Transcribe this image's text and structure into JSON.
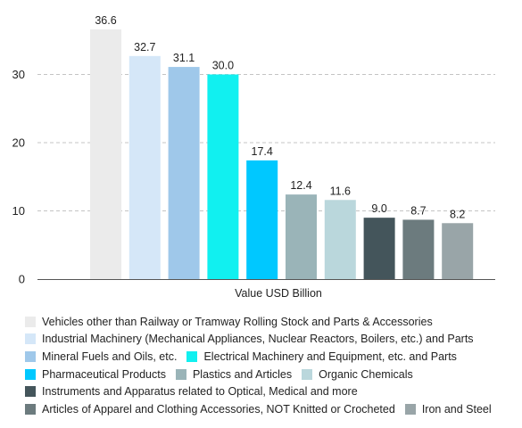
{
  "chart_data": {
    "type": "bar",
    "xlabel": "Value USD Billion",
    "ylabel": "",
    "ylim": [
      0,
      36.6
    ],
    "yticks": [
      0,
      10,
      20,
      30
    ],
    "grid": true,
    "legend_position": "bottom",
    "series": [
      {
        "name": "Vehicles other than Railway or Tramway Rolling Stock and Parts & Accessories",
        "value": 36.6,
        "label": "36.6",
        "color": "#ebebeb"
      },
      {
        "name": "Industrial Machinery (Mechanical Appliances, Nuclear Reactors, Boilers, etc.) and Parts",
        "value": 32.7,
        "label": "32.7",
        "color": "#d5e7f8"
      },
      {
        "name": "Mineral Fuels and Oils, etc.",
        "value": 31.1,
        "label": "31.1",
        "color": "#9fc8ea"
      },
      {
        "name": "Electrical Machinery and Equipment, etc. and Parts",
        "value": 30.0,
        "label": "30.0",
        "color": "#11f0f0"
      },
      {
        "name": "Pharmaceutical Products",
        "value": 17.4,
        "label": "17.4",
        "color": "#00c8ff"
      },
      {
        "name": "Plastics and Articles",
        "value": 12.4,
        "label": "12.4",
        "color": "#9ab4b8"
      },
      {
        "name": "Organic Chemicals",
        "value": 11.6,
        "label": "11.6",
        "color": "#bad7dc"
      },
      {
        "name": "Instruments and Apparatus related to Optical, Medical and more",
        "value": 9.0,
        "label": "9.0",
        "color": "#44555b"
      },
      {
        "name": "Articles of Apparel and Clothing Accessories, NOT Knitted or Crocheted",
        "value": 8.7,
        "label": "8.7",
        "color": "#6c7b7e"
      },
      {
        "name": "Iron and Steel",
        "value": 8.2,
        "label": "8.2",
        "color": "#99a5a8"
      }
    ],
    "legend_rows": [
      [
        0
      ],
      [
        1
      ],
      [
        2,
        3
      ],
      [
        4,
        5,
        6
      ],
      [
        7
      ],
      [
        8,
        9
      ]
    ]
  }
}
